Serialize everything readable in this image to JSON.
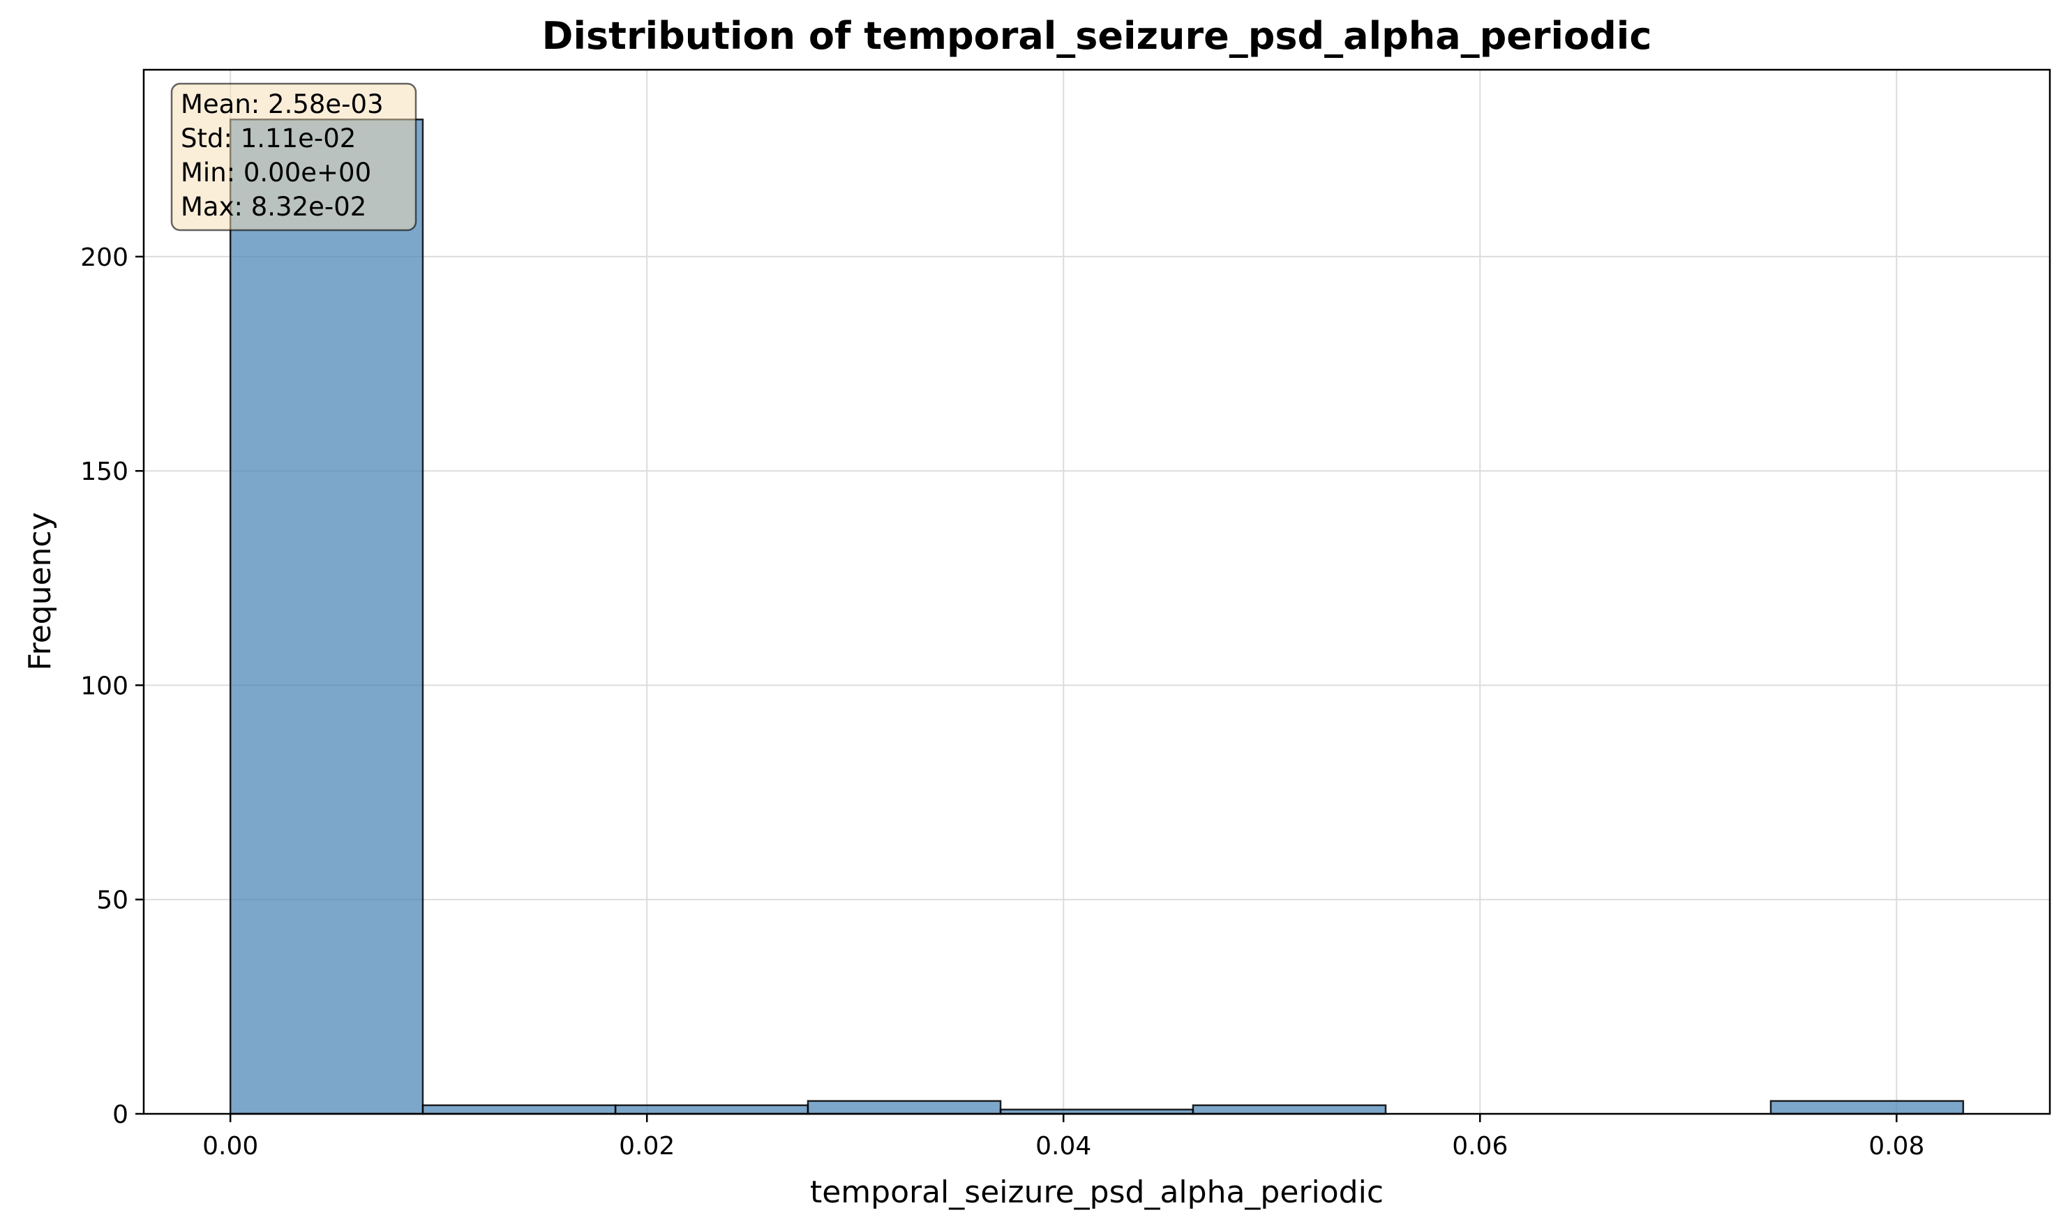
{
  "chart_data": {
    "type": "bar",
    "title": "Distribution of temporal_seizure_psd_alpha_periodic",
    "xlabel": "temporal_seizure_psd_alpha_periodic",
    "ylabel": "Frequency",
    "bin_edges": [
      0.0,
      0.00924,
      0.01849,
      0.02773,
      0.03698,
      0.04622,
      0.05547,
      0.06471,
      0.07396,
      0.0832
    ],
    "values": [
      232,
      2,
      2,
      3,
      1,
      2,
      0,
      0,
      3
    ],
    "xlim": [
      -0.00416,
      0.08736
    ],
    "ylim": [
      0,
      243.6
    ],
    "xticks": [
      0.0,
      0.02,
      0.04,
      0.06,
      0.08
    ],
    "xtick_labels": [
      "0.00",
      "0.02",
      "0.04",
      "0.06",
      "0.08"
    ],
    "yticks": [
      0,
      50,
      100,
      150,
      200
    ],
    "ytick_labels": [
      "0",
      "50",
      "100",
      "150",
      "200"
    ],
    "grid": true,
    "bar_color": "#4682b4",
    "stats_box": {
      "mean": "Mean: 2.58e-03",
      "std": "Std: 1.11e-02",
      "min": "Min: 0.00e+00",
      "max": "Max: 8.32e-02"
    }
  }
}
